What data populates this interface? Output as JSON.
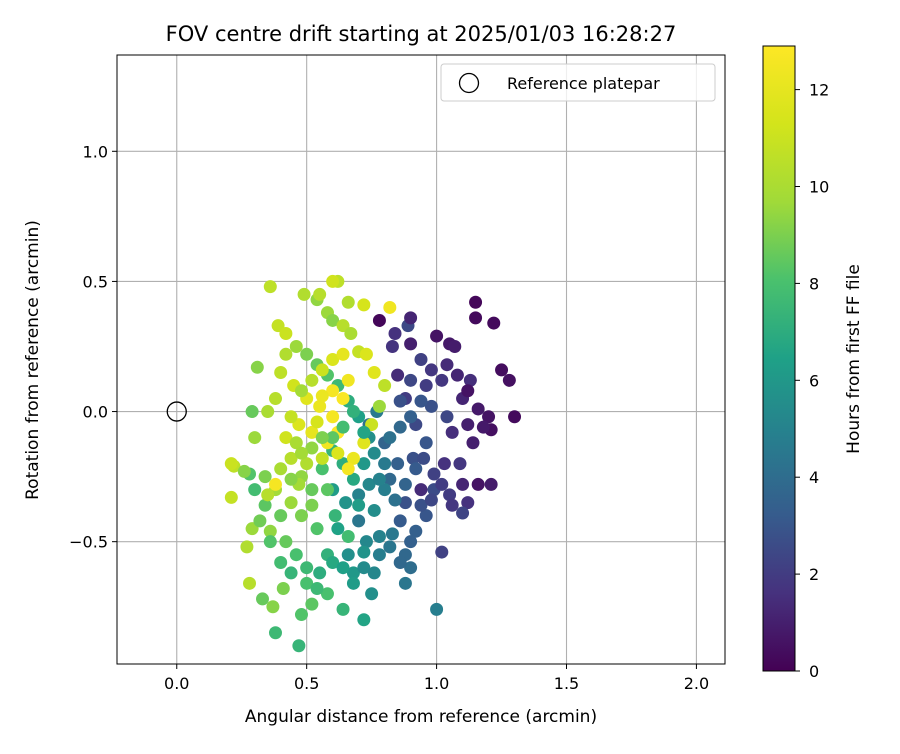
{
  "chart_data": {
    "type": "scatter",
    "title": "FOV centre drift starting at 2025/01/03 16:28:27",
    "xlabel": "Angular distance from reference (arcmin)",
    "ylabel": "Rotation from reference (arcmin)",
    "xlim": [
      -0.23,
      2.11
    ],
    "ylim": [
      -0.97,
      1.37
    ],
    "x_ticks": [
      0.0,
      0.5,
      1.0,
      1.5,
      2.0
    ],
    "x_tick_labels": [
      "0.0",
      "0.5",
      "1.0",
      "1.5",
      "2.0"
    ],
    "y_ticks": [
      -0.5,
      0.0,
      0.5,
      1.0
    ],
    "y_tick_labels": [
      "−0.5",
      "0.0",
      "0.5",
      "1.0"
    ],
    "grid": true,
    "legend": {
      "placement": "top-right",
      "entries": [
        {
          "label": "Reference platepar",
          "marker": "open-circle"
        }
      ]
    },
    "reference_point": {
      "x": 0.0,
      "y": 0.0
    },
    "colorbar": {
      "label": "Hours from first FF file",
      "range": [
        0,
        12.9
      ],
      "ticks": [
        0,
        2,
        4,
        6,
        8,
        10,
        12
      ],
      "tick_labels": [
        "0",
        "2",
        "4",
        "6",
        "8",
        "10",
        "12"
      ],
      "colormap": "viridis"
    },
    "series": [
      {
        "color_by": "hours",
        "points": [
          [
            1.15,
            0.42,
            0.2
          ],
          [
            1.22,
            0.34,
            0.3
          ],
          [
            1.15,
            0.36,
            0.3
          ],
          [
            0.78,
            0.35,
            0.2
          ],
          [
            1.0,
            0.29,
            0.6
          ],
          [
            1.05,
            0.26,
            0.8
          ],
          [
            1.07,
            0.25,
            0.9
          ],
          [
            0.9,
            0.26,
            1.0
          ],
          [
            1.25,
            0.16,
            0.4
          ],
          [
            1.28,
            0.12,
            0.5
          ],
          [
            1.3,
            -0.02,
            0.3
          ],
          [
            1.2,
            -0.02,
            0.6
          ],
          [
            1.21,
            -0.07,
            0.5
          ],
          [
            1.16,
            0.01,
            0.8
          ],
          [
            1.12,
            -0.05,
            1.0
          ],
          [
            1.1,
            0.05,
            1.2
          ],
          [
            1.13,
            0.12,
            1.5
          ],
          [
            1.02,
            0.12,
            1.8
          ],
          [
            0.96,
            0.1,
            2.0
          ],
          [
            1.06,
            -0.08,
            1.5
          ],
          [
            1.09,
            -0.2,
            1.8
          ],
          [
            1.16,
            -0.28,
            0.6
          ],
          [
            1.21,
            -0.28,
            0.9
          ],
          [
            1.12,
            -0.35,
            1.6
          ],
          [
            1.1,
            -0.39,
            2.3
          ],
          [
            1.05,
            -0.32,
            2.0
          ],
          [
            0.99,
            -0.3,
            2.6
          ],
          [
            0.94,
            -0.3,
            1.4
          ],
          [
            0.88,
            -0.35,
            2.8
          ],
          [
            1.02,
            -0.54,
            2.2
          ],
          [
            0.89,
            0.33,
            2.5
          ],
          [
            0.83,
            0.25,
            1.7
          ],
          [
            0.85,
            0.14,
            1.4
          ],
          [
            0.88,
            0.05,
            2.0
          ],
          [
            0.92,
            -0.05,
            2.5
          ],
          [
            0.96,
            -0.12,
            3.0
          ],
          [
            0.91,
            -0.18,
            2.8
          ],
          [
            0.85,
            -0.2,
            3.4
          ],
          [
            0.8,
            -0.12,
            3.6
          ],
          [
            0.74,
            -0.05,
            4.2
          ],
          [
            0.77,
            0.0,
            4.6
          ],
          [
            0.82,
            -0.26,
            3.8
          ],
          [
            0.86,
            -0.42,
            3.2
          ],
          [
            0.9,
            -0.5,
            3.4
          ],
          [
            0.96,
            -0.4,
            3.0
          ],
          [
            0.83,
            -0.47,
            4.5
          ],
          [
            0.78,
            -0.55,
            4.8
          ],
          [
            0.73,
            -0.5,
            5.2
          ],
          [
            0.76,
            -0.38,
            5.5
          ],
          [
            0.7,
            -0.32,
            5.0
          ],
          [
            0.7,
            -0.42,
            4.4
          ],
          [
            0.65,
            -0.35,
            5.8
          ],
          [
            0.6,
            -0.3,
            6.2
          ],
          [
            0.62,
            -0.45,
            6.5
          ],
          [
            0.66,
            -0.55,
            5.6
          ],
          [
            0.68,
            -0.62,
            6.0
          ],
          [
            0.72,
            -0.6,
            5.4
          ],
          [
            0.76,
            -0.62,
            5.2
          ],
          [
            0.75,
            -0.7,
            5.6
          ],
          [
            0.88,
            -0.66,
            4.4
          ],
          [
            0.9,
            -0.6,
            4.0
          ],
          [
            0.88,
            -0.55,
            3.8
          ],
          [
            1.0,
            -0.76,
            4.8
          ],
          [
            0.72,
            -0.8,
            6.6
          ],
          [
            0.64,
            -0.76,
            7.4
          ],
          [
            0.58,
            -0.7,
            8.0
          ],
          [
            0.52,
            -0.74,
            8.4
          ],
          [
            0.48,
            -0.78,
            8.2
          ],
          [
            0.47,
            -0.9,
            7.4
          ],
          [
            0.38,
            -0.85,
            7.6
          ],
          [
            0.41,
            -0.68,
            9.0
          ],
          [
            0.37,
            -0.75,
            9.2
          ],
          [
            0.33,
            -0.72,
            8.6
          ],
          [
            0.28,
            -0.66,
            10.4
          ],
          [
            0.27,
            -0.52,
            10.2
          ],
          [
            0.29,
            -0.45,
            9.6
          ],
          [
            0.32,
            -0.42,
            8.8
          ],
          [
            0.36,
            -0.46,
            9.4
          ],
          [
            0.42,
            -0.5,
            8.6
          ],
          [
            0.46,
            -0.55,
            8.0
          ],
          [
            0.5,
            -0.6,
            7.6
          ],
          [
            0.55,
            -0.62,
            7.0
          ],
          [
            0.58,
            -0.55,
            7.2
          ],
          [
            0.54,
            -0.45,
            8.2
          ],
          [
            0.48,
            -0.4,
            9.0
          ],
          [
            0.44,
            -0.35,
            9.6
          ],
          [
            0.38,
            -0.3,
            9.8
          ],
          [
            0.34,
            -0.36,
            8.4
          ],
          [
            0.3,
            -0.3,
            7.8
          ],
          [
            0.28,
            -0.24,
            8.2
          ],
          [
            0.22,
            -0.21,
            10.6
          ],
          [
            0.21,
            -0.2,
            11.0
          ],
          [
            0.21,
            -0.33,
            10.8
          ],
          [
            0.26,
            -0.23,
            9.2
          ],
          [
            0.34,
            -0.25,
            9.0
          ],
          [
            0.4,
            -0.22,
            10.0
          ],
          [
            0.44,
            -0.18,
            10.4
          ],
          [
            0.48,
            -0.25,
            9.4
          ],
          [
            0.52,
            -0.3,
            8.6
          ],
          [
            0.56,
            -0.22,
            8.0
          ],
          [
            0.6,
            -0.15,
            7.4
          ],
          [
            0.64,
            -0.2,
            7.0
          ],
          [
            0.68,
            -0.26,
            6.8
          ],
          [
            0.72,
            -0.2,
            6.0
          ],
          [
            0.74,
            -0.1,
            5.6
          ],
          [
            0.7,
            -0.02,
            6.4
          ],
          [
            0.66,
            0.04,
            7.0
          ],
          [
            0.62,
            0.1,
            7.6
          ],
          [
            0.58,
            0.14,
            8.2
          ],
          [
            0.54,
            0.18,
            8.6
          ],
          [
            0.5,
            0.22,
            9.0
          ],
          [
            0.46,
            0.25,
            9.6
          ],
          [
            0.42,
            0.22,
            10.2
          ],
          [
            0.4,
            0.15,
            10.6
          ],
          [
            0.45,
            0.1,
            11.2
          ],
          [
            0.5,
            0.05,
            11.8
          ],
          [
            0.55,
            0.02,
            12.2
          ],
          [
            0.6,
            -0.02,
            12.6
          ],
          [
            0.62,
            -0.08,
            12.8
          ],
          [
            0.58,
            -0.12,
            12.4
          ],
          [
            0.52,
            -0.08,
            12.0
          ],
          [
            0.47,
            -0.05,
            11.6
          ],
          [
            0.42,
            -0.1,
            11.2
          ],
          [
            0.44,
            -0.02,
            10.8
          ],
          [
            0.38,
            0.05,
            10.4
          ],
          [
            0.35,
            0.0,
            10.0
          ],
          [
            0.3,
            -0.1,
            9.6
          ],
          [
            0.29,
            0.0,
            8.6
          ],
          [
            0.31,
            0.17,
            9.2
          ],
          [
            0.36,
            0.48,
            10.6
          ],
          [
            0.39,
            0.33,
            10.8
          ],
          [
            0.42,
            0.3,
            11.0
          ],
          [
            0.49,
            0.45,
            10.2
          ],
          [
            0.54,
            0.43,
            9.4
          ],
          [
            0.55,
            0.45,
            10.4
          ],
          [
            0.58,
            0.38,
            9.6
          ],
          [
            0.6,
            0.35,
            9.2
          ],
          [
            0.62,
            0.5,
            10.6
          ],
          [
            0.6,
            0.5,
            11.2
          ],
          [
            0.66,
            0.42,
            10.2
          ],
          [
            0.72,
            0.41,
            11.4
          ],
          [
            0.82,
            0.4,
            12.4
          ],
          [
            0.64,
            0.33,
            10.4
          ],
          [
            0.67,
            0.3,
            10.0
          ],
          [
            0.7,
            0.23,
            10.8
          ],
          [
            0.73,
            0.22,
            11.6
          ],
          [
            0.76,
            0.15,
            11.8
          ],
          [
            0.8,
            0.1,
            10.6
          ],
          [
            0.78,
            0.02,
            9.6
          ],
          [
            0.75,
            -0.05,
            11.0
          ],
          [
            0.72,
            -0.12,
            11.8
          ],
          [
            0.68,
            -0.18,
            12.2
          ],
          [
            0.66,
            -0.22,
            12.6
          ],
          [
            0.62,
            -0.16,
            11.6
          ],
          [
            0.56,
            -0.18,
            10.8
          ],
          [
            0.5,
            -0.2,
            10.2
          ],
          [
            0.46,
            -0.12,
            10.0
          ],
          [
            0.48,
            0.08,
            9.8
          ],
          [
            0.52,
            0.12,
            10.4
          ],
          [
            0.56,
            0.16,
            11.0
          ],
          [
            0.6,
            0.2,
            11.6
          ],
          [
            0.64,
            0.22,
            12.0
          ],
          [
            0.66,
            0.12,
            12.4
          ],
          [
            0.64,
            0.05,
            12.8
          ],
          [
            0.6,
            0.08,
            12.6
          ],
          [
            0.56,
            0.06,
            12.2
          ],
          [
            0.54,
            -0.04,
            11.4
          ],
          [
            0.58,
            -0.3,
            8.4
          ],
          [
            0.52,
            -0.36,
            9.0
          ],
          [
            0.47,
            -0.28,
            9.8
          ],
          [
            0.38,
            -0.28,
            12.6
          ],
          [
            0.35,
            -0.32,
            10.4
          ],
          [
            0.61,
            -0.4,
            7.4
          ],
          [
            0.66,
            -0.48,
            7.8
          ],
          [
            0.7,
            -0.36,
            6.2
          ],
          [
            0.74,
            -0.28,
            5.2
          ],
          [
            0.8,
            -0.3,
            4.8
          ],
          [
            0.84,
            -0.34,
            4.2
          ],
          [
            0.88,
            -0.28,
            3.6
          ],
          [
            0.92,
            -0.22,
            3.2
          ],
          [
            0.95,
            -0.18,
            2.6
          ],
          [
            0.99,
            -0.24,
            2.2
          ],
          [
            1.03,
            -0.2,
            1.6
          ],
          [
            1.04,
            -0.02,
            2.4
          ],
          [
            0.98,
            0.02,
            2.8
          ],
          [
            0.94,
            0.04,
            3.0
          ],
          [
            0.9,
            -0.02,
            3.4
          ],
          [
            0.86,
            -0.06,
            3.8
          ],
          [
            0.82,
            -0.1,
            4.2
          ],
          [
            0.8,
            -0.2,
            4.6
          ],
          [
            0.78,
            -0.26,
            5.0
          ],
          [
            0.76,
            -0.16,
            5.4
          ],
          [
            0.72,
            -0.08,
            6.6
          ],
          [
            0.68,
            0.0,
            7.2
          ],
          [
            0.64,
            -0.06,
            7.8
          ],
          [
            0.6,
            -0.1,
            8.4
          ],
          [
            0.56,
            -0.1,
            9.0
          ],
          [
            0.52,
            -0.14,
            9.4
          ],
          [
            0.48,
            -0.16,
            9.8
          ],
          [
            0.44,
            -0.26,
            9.2
          ],
          [
            0.4,
            -0.4,
            8.6
          ],
          [
            0.36,
            -0.5,
            8.2
          ],
          [
            0.4,
            -0.58,
            7.8
          ],
          [
            0.44,
            -0.62,
            7.4
          ],
          [
            0.5,
            -0.66,
            8.0
          ],
          [
            0.54,
            -0.68,
            7.6
          ],
          [
            0.6,
            -0.58,
            6.8
          ],
          [
            0.64,
            -0.6,
            6.4
          ],
          [
            0.68,
            -0.66,
            6.2
          ],
          [
            0.72,
            -0.54,
            5.8
          ],
          [
            0.78,
            -0.48,
            5.0
          ],
          [
            0.82,
            -0.52,
            4.4
          ],
          [
            0.86,
            -0.58,
            3.8
          ],
          [
            0.92,
            -0.46,
            3.4
          ],
          [
            0.94,
            -0.36,
            2.8
          ],
          [
            0.98,
            -0.34,
            2.4
          ],
          [
            1.02,
            -0.28,
            2.0
          ],
          [
            1.06,
            -0.36,
            1.8
          ],
          [
            1.1,
            -0.28,
            1.2
          ],
          [
            1.14,
            -0.12,
            1.0
          ],
          [
            1.18,
            -0.06,
            0.8
          ],
          [
            1.12,
            0.08,
            0.6
          ],
          [
            1.08,
            0.14,
            1.2
          ],
          [
            1.04,
            0.18,
            1.4
          ],
          [
            0.98,
            0.16,
            1.8
          ],
          [
            0.94,
            0.2,
            2.2
          ],
          [
            0.9,
            0.12,
            2.4
          ],
          [
            0.86,
            0.04,
            2.8
          ],
          [
            0.84,
            0.3,
            1.6
          ],
          [
            0.9,
            0.36,
            1.2
          ]
        ]
      }
    ]
  }
}
